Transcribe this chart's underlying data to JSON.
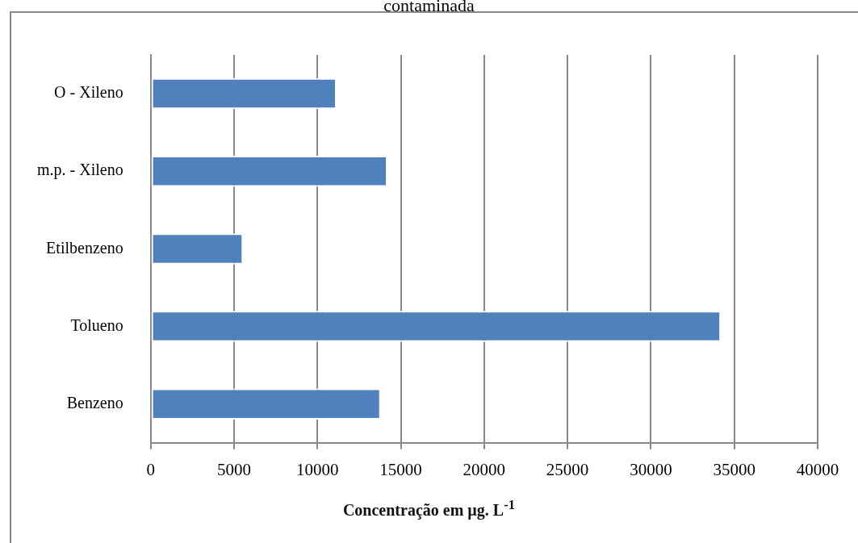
{
  "chart_data": {
    "type": "bar",
    "orientation": "horizontal",
    "title": "contaminada",
    "xlabel": "Concentração em µg. L$^{-1}$",
    "categories": [
      "O - Xileno",
      "m.p. - Xileno",
      "Etilbenzeno",
      "Tolueno",
      "Benzeno"
    ],
    "values": [
      11150,
      14200,
      5550,
      34200,
      13800
    ],
    "color": "#4f81bd",
    "xlim": [
      0,
      40000
    ],
    "xticks": [
      0,
      5000,
      10000,
      15000,
      20000,
      25000,
      30000,
      35000,
      40000
    ],
    "grid": "x",
    "legend": false
  }
}
